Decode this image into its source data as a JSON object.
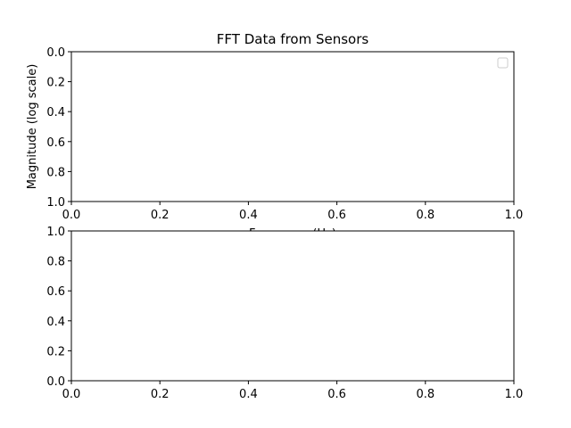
{
  "chart_data": [
    {
      "type": "line",
      "title": "FFT Data from Sensors",
      "xlabel": "Frequency (Hz)",
      "ylabel": "Magnitude (log scale)",
      "xlim": [
        0.0,
        1.0
      ],
      "ylim": [
        0.0,
        1.0
      ],
      "y_inverted": true,
      "xticks": [
        "0.0",
        "0.2",
        "0.4",
        "0.6",
        "0.8",
        "1.0"
      ],
      "yticks": [
        "0.0",
        "0.2",
        "0.4",
        "0.6",
        "0.8",
        "1.0"
      ],
      "series": [],
      "grid": false,
      "legend": "upper right (empty)"
    },
    {
      "type": "line",
      "title": "",
      "xlabel": "",
      "ylabel": "",
      "xlim": [
        0.0,
        1.0
      ],
      "ylim": [
        0.0,
        1.0
      ],
      "y_inverted": false,
      "xticks": [
        "0.0",
        "0.2",
        "0.4",
        "0.6",
        "0.8",
        "1.0"
      ],
      "yticks": [
        "0.0",
        "0.2",
        "0.4",
        "0.6",
        "0.8",
        "1.0"
      ],
      "series": [],
      "grid": false
    }
  ]
}
